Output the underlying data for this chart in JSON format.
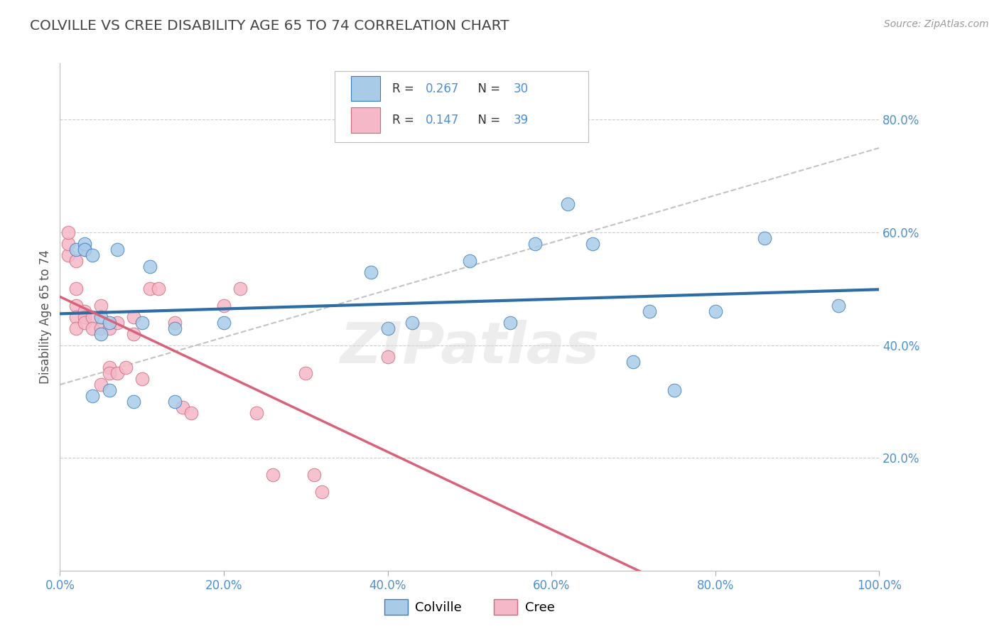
{
  "title": "COLVILLE VS CREE DISABILITY AGE 65 TO 74 CORRELATION CHART",
  "source": "Source: ZipAtlas.com",
  "ylabel": "Disability Age 65 to 74",
  "watermark": "ZIPatlas",
  "colville_R": 0.267,
  "colville_N": 30,
  "cree_R": 0.147,
  "cree_N": 39,
  "xlim": [
    0.0,
    1.0
  ],
  "ylim": [
    0.0,
    0.9
  ],
  "xticks": [
    0.0,
    0.2,
    0.4,
    0.6,
    0.8,
    1.0
  ],
  "yticks": [
    0.2,
    0.4,
    0.6,
    0.8
  ],
  "xtick_labels": [
    "0.0%",
    "20.0%",
    "40.0%",
    "60.0%",
    "80.0%",
    "100.0%"
  ],
  "ytick_labels": [
    "20.0%",
    "40.0%",
    "60.0%",
    "80.0%"
  ],
  "colville_marker_color": "#a8cce8",
  "colville_edge_color": "#3a7abf",
  "cree_marker_color": "#f5b8c8",
  "cree_edge_color": "#d06878",
  "colville_line_color": "#2e6da4",
  "cree_line_color": "#d9627a",
  "gray_dash_color": "#aaaaaa",
  "tick_label_color": "#4a90d9",
  "legend_colville_label": "Colville",
  "legend_cree_label": "Cree",
  "colville_x": [
    0.02,
    0.03,
    0.03,
    0.04,
    0.04,
    0.05,
    0.05,
    0.06,
    0.06,
    0.07,
    0.09,
    0.1,
    0.11,
    0.14,
    0.14,
    0.2,
    0.38,
    0.4,
    0.43,
    0.5,
    0.55,
    0.58,
    0.62,
    0.65,
    0.7,
    0.72,
    0.75,
    0.8,
    0.86,
    0.95
  ],
  "colville_y": [
    0.57,
    0.58,
    0.57,
    0.56,
    0.31,
    0.45,
    0.42,
    0.44,
    0.32,
    0.57,
    0.3,
    0.44,
    0.54,
    0.43,
    0.3,
    0.44,
    0.53,
    0.43,
    0.44,
    0.55,
    0.44,
    0.58,
    0.65,
    0.58,
    0.37,
    0.46,
    0.32,
    0.46,
    0.59,
    0.47
  ],
  "cree_x": [
    0.01,
    0.01,
    0.01,
    0.02,
    0.02,
    0.02,
    0.02,
    0.02,
    0.03,
    0.03,
    0.03,
    0.03,
    0.04,
    0.04,
    0.05,
    0.05,
    0.05,
    0.06,
    0.06,
    0.06,
    0.07,
    0.07,
    0.08,
    0.09,
    0.09,
    0.1,
    0.11,
    0.12,
    0.14,
    0.15,
    0.16,
    0.2,
    0.22,
    0.24,
    0.26,
    0.3,
    0.31,
    0.32,
    0.4
  ],
  "cree_y": [
    0.56,
    0.58,
    0.6,
    0.55,
    0.5,
    0.47,
    0.45,
    0.43,
    0.46,
    0.57,
    0.45,
    0.44,
    0.45,
    0.43,
    0.43,
    0.47,
    0.33,
    0.43,
    0.36,
    0.35,
    0.35,
    0.44,
    0.36,
    0.45,
    0.42,
    0.34,
    0.5,
    0.5,
    0.44,
    0.29,
    0.28,
    0.47,
    0.5,
    0.28,
    0.17,
    0.35,
    0.17,
    0.14,
    0.38
  ]
}
